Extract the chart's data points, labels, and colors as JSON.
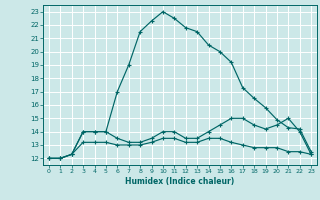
{
  "xlabel": "Humidex (Indice chaleur)",
  "bg_color": "#cce8e8",
  "grid_color": "#ffffff",
  "line_color": "#006666",
  "xlim": [
    -0.5,
    23.5
  ],
  "ylim": [
    11.5,
    23.5
  ],
  "yticks": [
    12,
    13,
    14,
    15,
    16,
    17,
    18,
    19,
    20,
    21,
    22,
    23
  ],
  "xticks": [
    0,
    1,
    2,
    3,
    4,
    5,
    6,
    7,
    8,
    9,
    10,
    11,
    12,
    13,
    14,
    15,
    16,
    17,
    18,
    19,
    20,
    21,
    22,
    23
  ],
  "series1_y": [
    12,
    12,
    12.3,
    14,
    14,
    14,
    17,
    19,
    21.5,
    22.3,
    23,
    22.5,
    21.8,
    21.5,
    20.5,
    20,
    19.2,
    17.3,
    16.5,
    15.8,
    14.9,
    14.3,
    14.2,
    12.5
  ],
  "series2_y": [
    12,
    12,
    12.3,
    13.2,
    13.2,
    13.2,
    13.0,
    13.0,
    13.0,
    13.2,
    13.5,
    13.5,
    13.2,
    13.2,
    13.5,
    13.5,
    13.2,
    13.0,
    12.8,
    12.8,
    12.8,
    12.5,
    12.5,
    12.3
  ],
  "series3_y": [
    12,
    12,
    12.3,
    14,
    14,
    14,
    13.5,
    13.2,
    13.2,
    13.5,
    14,
    14,
    13.5,
    13.5,
    14,
    14.5,
    15,
    15,
    14.5,
    14.2,
    14.5,
    15,
    14,
    12.3
  ]
}
